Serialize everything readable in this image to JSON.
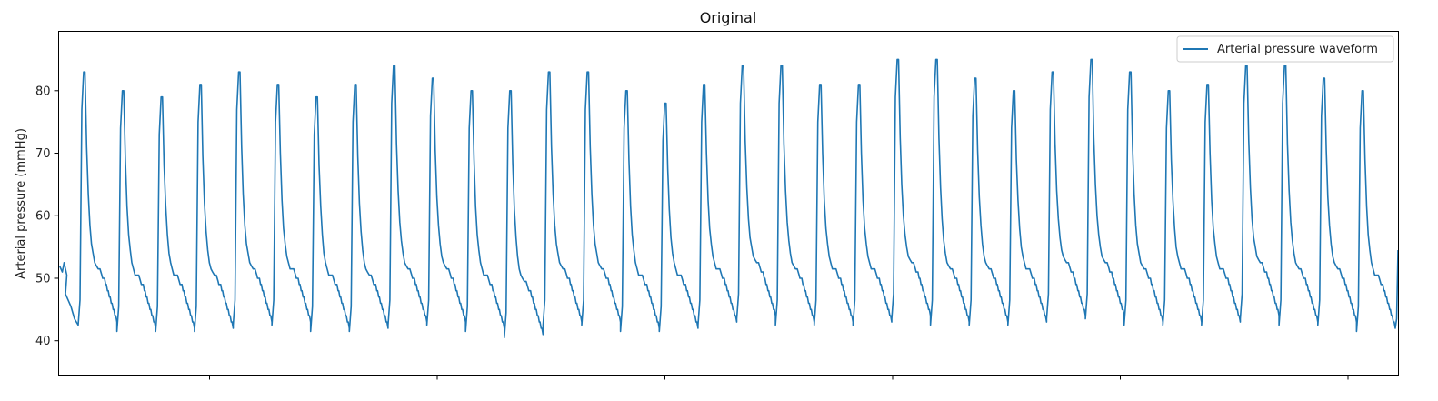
{
  "chart_data": {
    "type": "line",
    "title": "Original",
    "xlabel": "",
    "ylabel": "Arterial pressure (mmHg)",
    "ylim": [
      34.5,
      89.5
    ],
    "yticks": [
      40,
      50,
      60,
      70,
      80
    ],
    "x_tick_labels_visible": false,
    "grid": false,
    "legend": {
      "position": "top-right",
      "entries": [
        "Arterial pressure waveform"
      ]
    },
    "colors": {
      "line": "#1f77b4",
      "axes": "#000000",
      "background": "#ffffff"
    },
    "series": [
      {
        "name": "Arterial pressure waveform",
        "start_value": 52,
        "end_value": 54.5,
        "beats": [
          {
            "systolic": 83,
            "diastolic": 42.5
          },
          {
            "systolic": 80,
            "diastolic": 41.5
          },
          {
            "systolic": 79,
            "diastolic": 41.5
          },
          {
            "systolic": 81,
            "diastolic": 41.5
          },
          {
            "systolic": 83,
            "diastolic": 42.5
          },
          {
            "systolic": 81,
            "diastolic": 42.5
          },
          {
            "systolic": 79,
            "diastolic": 41.5
          },
          {
            "systolic": 81,
            "diastolic": 41.5
          },
          {
            "systolic": 84,
            "diastolic": 42.5
          },
          {
            "systolic": 82,
            "diastolic": 42.5
          },
          {
            "systolic": 80,
            "diastolic": 41.5
          },
          {
            "systolic": 80,
            "diastolic": 40.5
          },
          {
            "systolic": 83,
            "diastolic": 42.5
          },
          {
            "systolic": 83,
            "diastolic": 42.5
          },
          {
            "systolic": 80,
            "diastolic": 41.5
          },
          {
            "systolic": 78,
            "diastolic": 41.5
          },
          {
            "systolic": 81,
            "diastolic": 42.5
          },
          {
            "systolic": 84,
            "diastolic": 43.5
          },
          {
            "systolic": 84,
            "diastolic": 42.5
          },
          {
            "systolic": 81,
            "diastolic": 42.5
          },
          {
            "systolic": 81,
            "diastolic": 42.5
          },
          {
            "systolic": 85,
            "diastolic": 43.5
          },
          {
            "systolic": 85,
            "diastolic": 42.5
          },
          {
            "systolic": 82,
            "diastolic": 42.5
          },
          {
            "systolic": 80,
            "diastolic": 42.5
          },
          {
            "systolic": 83,
            "diastolic": 43.5
          },
          {
            "systolic": 85,
            "diastolic": 43.5
          },
          {
            "systolic": 83,
            "diastolic": 42.5
          },
          {
            "systolic": 80,
            "diastolic": 42.5
          },
          {
            "systolic": 81,
            "diastolic": 42.5
          },
          {
            "systolic": 84,
            "diastolic": 43.5
          },
          {
            "systolic": 84,
            "diastolic": 42.5
          },
          {
            "systolic": 82,
            "diastolic": 42.5
          },
          {
            "systolic": 80,
            "diastolic": 41.5
          }
        ]
      }
    ]
  }
}
